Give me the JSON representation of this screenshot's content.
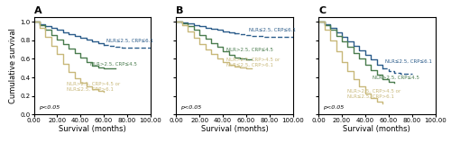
{
  "chart_data": [
    {
      "type": "step",
      "title": "A",
      "xlabel": "Survival (months)",
      "ylabel": "Cumulative survival",
      "xlim": [
        0,
        100
      ],
      "ylim": [
        0.0,
        1.05
      ],
      "xticks": [
        {
          "value": 0,
          "label": "0.00"
        },
        {
          "value": 20,
          "label": "20.00"
        },
        {
          "value": 40,
          "label": "40.00"
        },
        {
          "value": 60,
          "label": "60.00"
        },
        {
          "value": 80,
          "label": "80.00"
        },
        {
          "value": 100,
          "label": "100.00"
        }
      ],
      "yticks": [
        0.0,
        0.2,
        0.4,
        0.6,
        0.8,
        1.0
      ],
      "series": [
        {
          "color": "#2b5c8a",
          "line_style": "solid",
          "x": [
            0,
            5,
            10,
            15,
            20,
            25,
            30,
            35,
            40,
            45,
            50,
            55,
            60
          ],
          "values": [
            1.0,
            0.97,
            0.95,
            0.93,
            0.91,
            0.89,
            0.87,
            0.85,
            0.83,
            0.81,
            0.79,
            0.77,
            0.75
          ]
        },
        {
          "color": "#2b5c8a",
          "line_style": "dashed",
          "x": [
            60,
            65,
            70,
            75,
            80,
            85,
            90,
            95,
            100
          ],
          "values": [
            0.75,
            0.74,
            0.73,
            0.72,
            0.72,
            0.72,
            0.72,
            0.72,
            0.72
          ]
        },
        {
          "color": "#4a7c4e",
          "line_style": "solid",
          "x": [
            0,
            5,
            10,
            15,
            20,
            25,
            30,
            35,
            40,
            45,
            50,
            55,
            60,
            65,
            70
          ],
          "values": [
            1.0,
            0.96,
            0.91,
            0.86,
            0.81,
            0.76,
            0.71,
            0.66,
            0.61,
            0.57,
            0.53,
            0.51,
            0.5,
            0.5,
            0.5
          ]
        },
        {
          "color": "#c8b87a",
          "line_style": "solid",
          "x": [
            0,
            5,
            10,
            15,
            20,
            25,
            30,
            35,
            40,
            45,
            50,
            55,
            60
          ],
          "values": [
            1.0,
            0.93,
            0.84,
            0.74,
            0.65,
            0.55,
            0.46,
            0.39,
            0.34,
            0.3,
            0.27,
            0.25,
            0.24
          ]
        }
      ],
      "annotations": [
        {
          "text": "NLR≤2.5, CRP≤6.1",
          "x": 62,
          "y": 0.8,
          "color": "#2b5c8a"
        },
        {
          "text": "NLR>2.5, CRP≤4.5",
          "x": 48,
          "y": 0.54,
          "color": "#4a7c4e"
        },
        {
          "text": "NLR>2.5, CRP>4.5 or\nNLR≤2.5, CRP>6.1",
          "x": 28,
          "y": 0.3,
          "color": "#c8b87a"
        },
        {
          "text": "p<0.05"
        }
      ]
    },
    {
      "type": "step",
      "title": "B",
      "xlabel": "Survival (months)",
      "tick_labels": "x",
      "xlim": [
        0,
        100
      ],
      "ylim": [
        0.0,
        1.05
      ],
      "xticks": [
        {
          "value": 0,
          "label": "0.00"
        },
        {
          "value": 20,
          "label": "20.00"
        },
        {
          "value": 40,
          "label": "40.00"
        },
        {
          "value": 60,
          "label": "60.00"
        },
        {
          "value": 80,
          "label": "80.00"
        },
        {
          "value": 100,
          "label": "100.00"
        }
      ],
      "yticks": [
        0.0,
        0.2,
        0.4,
        0.6,
        0.8,
        1.0
      ],
      "series": [
        {
          "color": "#2b5c8a",
          "line_style": "solid",
          "x": [
            0,
            5,
            10,
            15,
            20,
            25,
            30,
            35,
            40,
            45,
            50
          ],
          "values": [
            1.0,
            0.99,
            0.98,
            0.96,
            0.95,
            0.93,
            0.92,
            0.91,
            0.9,
            0.89,
            0.88
          ]
        },
        {
          "color": "#2b5c8a",
          "line_style": "dashed",
          "x": [
            50,
            55,
            60,
            65,
            70,
            75,
            80,
            85,
            90,
            95,
            100
          ],
          "values": [
            0.88,
            0.87,
            0.86,
            0.85,
            0.85,
            0.84,
            0.84,
            0.84,
            0.84,
            0.84,
            0.84
          ]
        },
        {
          "color": "#4a7c4e",
          "line_style": "solid",
          "x": [
            0,
            5,
            10,
            15,
            20,
            25,
            30,
            35,
            40,
            45,
            50,
            55,
            60,
            65
          ],
          "values": [
            1.0,
            0.98,
            0.95,
            0.91,
            0.86,
            0.82,
            0.77,
            0.73,
            0.68,
            0.64,
            0.61,
            0.6,
            0.59,
            0.59
          ]
        },
        {
          "color": "#c8b87a",
          "line_style": "solid",
          "x": [
            0,
            5,
            10,
            15,
            20,
            25,
            30,
            35,
            40,
            45,
            50,
            55,
            60,
            65
          ],
          "values": [
            1.0,
            0.96,
            0.9,
            0.83,
            0.76,
            0.7,
            0.65,
            0.6,
            0.57,
            0.54,
            0.52,
            0.51,
            0.5,
            0.5
          ]
        }
      ],
      "annotations": [
        {
          "text": "NLR≤2.5, CRP≤6.1",
          "x": 62,
          "y": 0.91,
          "color": "#2b5c8a"
        },
        {
          "text": "NLR>2.5, CRP≤4.5",
          "x": 43,
          "y": 0.7,
          "color": "#4a7c4e"
        },
        {
          "text": "NLR>2.5, CRP>4.5 or\nNLR≤2.5, CRP>6.1",
          "x": 43,
          "y": 0.56,
          "color": "#c8b87a"
        },
        {
          "text": "p<0.05"
        }
      ]
    },
    {
      "type": "step",
      "title": "C",
      "xlabel": "Survival (months)",
      "tick_labels": "x",
      "xlim": [
        0,
        100
      ],
      "ylim": [
        0.0,
        1.05
      ],
      "xticks": [
        {
          "value": 0,
          "label": "0.00"
        },
        {
          "value": 20,
          "label": "20.00"
        },
        {
          "value": 40,
          "label": "40.00"
        },
        {
          "value": 60,
          "label": "60.00"
        },
        {
          "value": 80,
          "label": "80.00"
        },
        {
          "value": 100,
          "label": "100.00"
        }
      ],
      "yticks": [
        0.0,
        0.2,
        0.4,
        0.6,
        0.8,
        1.0
      ],
      "series": [
        {
          "color": "#2b5c8a",
          "line_style": "solid",
          "x": [
            0,
            5,
            10,
            15,
            20,
            25,
            30,
            35,
            40,
            45,
            50,
            55
          ],
          "values": [
            1.0,
            0.97,
            0.93,
            0.89,
            0.84,
            0.79,
            0.74,
            0.69,
            0.64,
            0.59,
            0.54,
            0.5
          ]
        },
        {
          "color": "#2b5c8a",
          "line_style": "dashed",
          "x": [
            55,
            60,
            65,
            70,
            75,
            80
          ],
          "values": [
            0.5,
            0.47,
            0.45,
            0.44,
            0.44,
            0.44
          ]
        },
        {
          "color": "#4a7c4e",
          "line_style": "solid",
          "x": [
            0,
            5,
            10,
            15,
            20,
            25,
            30,
            35,
            40,
            45,
            50,
            55,
            60,
            65
          ],
          "values": [
            1.0,
            0.96,
            0.91,
            0.85,
            0.79,
            0.73,
            0.66,
            0.6,
            0.54,
            0.48,
            0.43,
            0.38,
            0.35,
            0.34
          ]
        },
        {
          "color": "#c8b87a",
          "line_style": "solid",
          "x": [
            0,
            5,
            10,
            15,
            20,
            25,
            30,
            35,
            40,
            45,
            50,
            55
          ],
          "values": [
            1.0,
            0.91,
            0.8,
            0.68,
            0.57,
            0.47,
            0.38,
            0.3,
            0.23,
            0.18,
            0.14,
            0.12
          ]
        }
      ],
      "annotations": [
        {
          "text": "NLR≤2.5, CRP≤6.1",
          "x": 57,
          "y": 0.57,
          "color": "#2b5c8a"
        },
        {
          "text": "NLR>2.5, CRP≤4.5",
          "x": 46,
          "y": 0.4,
          "color": "#4a7c4e"
        },
        {
          "text": "NLR>2.5, CRP>4.5 or\nNLR≤2.5, CRP>6.1",
          "x": 25,
          "y": 0.22,
          "color": "#c8b87a"
        },
        {
          "text": "p<0.05"
        }
      ]
    }
  ]
}
